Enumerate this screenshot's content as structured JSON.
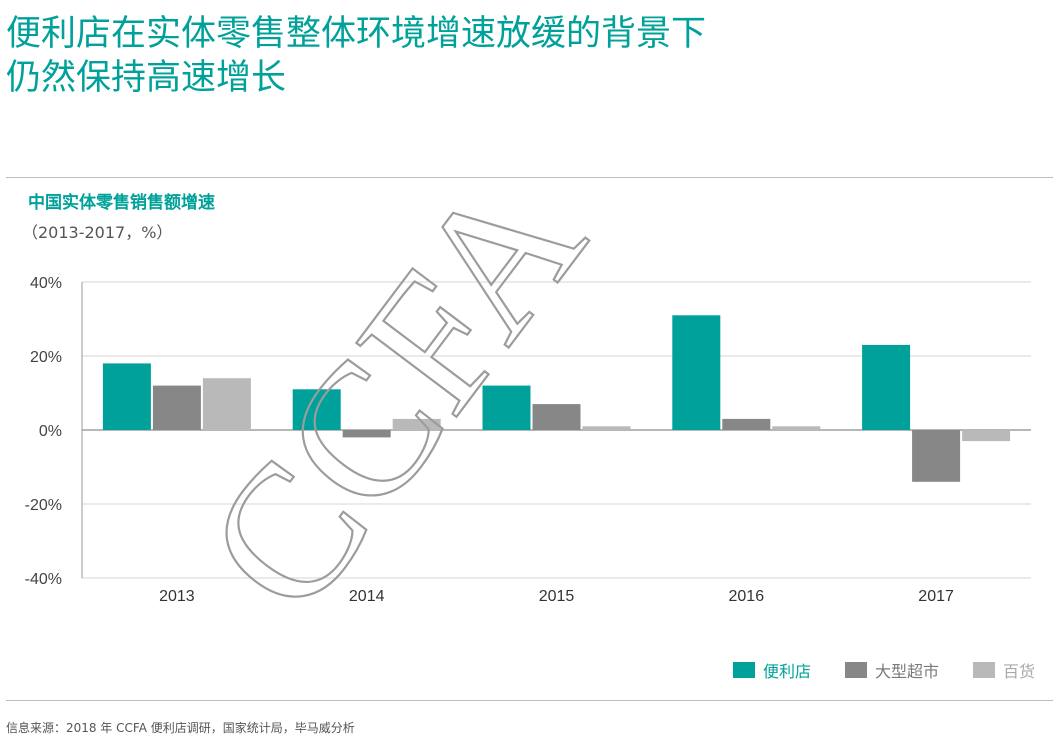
{
  "headline": {
    "line1": "便利店在实体零售整体环境增速放缓的背景下",
    "line2": "仍然保持高速增长"
  },
  "watermark": "CCFA",
  "source": "信息来源：2018 年 CCFA 便利店调研，国家统计局，毕马威分析",
  "chart_data": {
    "type": "bar",
    "title": "中国实体零售销售额增速",
    "subtitle": "（2013-2017，%）",
    "categories": [
      "2013",
      "2014",
      "2015",
      "2016",
      "2017"
    ],
    "series": [
      {
        "name": "便利店",
        "color": "#00a19a",
        "values": [
          18,
          11,
          12,
          31,
          23
        ]
      },
      {
        "name": "大型超市",
        "color": "#878787",
        "values": [
          12,
          -2,
          7,
          3,
          -14
        ]
      },
      {
        "name": "百货",
        "color": "#b9b9b9",
        "values": [
          14,
          3,
          1,
          1,
          -3
        ]
      }
    ],
    "ylim": [
      -40,
      40
    ],
    "yticks": [
      40,
      20,
      0,
      -20,
      -40
    ],
    "ytick_labels": [
      "40%",
      "20%",
      "0%",
      "-20%",
      "-40%"
    ],
    "grid": true,
    "legend_position": "bottom-right"
  }
}
